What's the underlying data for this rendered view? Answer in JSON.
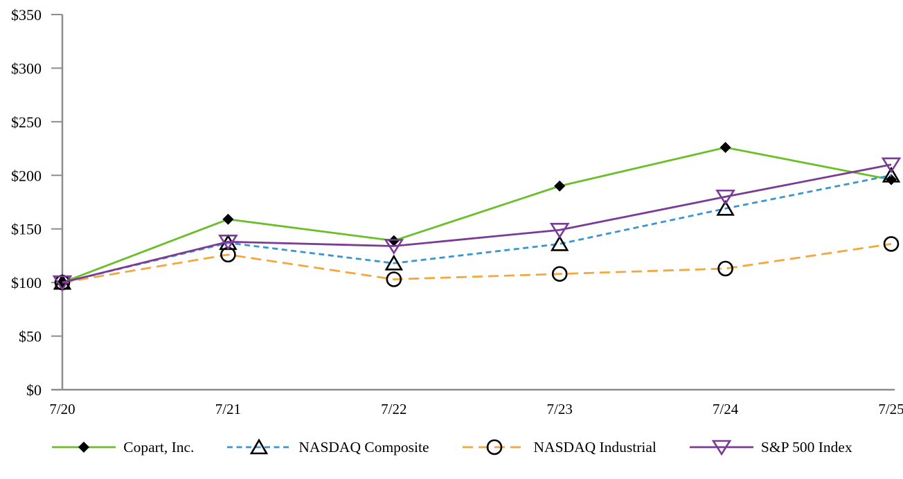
{
  "chart_data": {
    "type": "line",
    "title": "",
    "xlabel": "",
    "ylabel": "",
    "x_categories": [
      "7/20",
      "7/21",
      "7/22",
      "7/23",
      "7/24",
      "7/25"
    ],
    "ylim": [
      0,
      350
    ],
    "y_ticks": {
      "values": [
        0,
        50,
        100,
        150,
        200,
        250,
        300,
        350
      ],
      "labels": [
        "$0",
        "$50",
        "$100",
        "$150",
        "$200",
        "$250",
        "$300",
        "$350"
      ]
    },
    "grid": "off",
    "legend_position": "bottom",
    "axis_color": "#8c8c8c",
    "text_color": "#000000",
    "series": [
      {
        "name": "Copart, Inc.",
        "color": "#6abe28",
        "line_style": "solid",
        "dash": "",
        "marker": "diamond-filled",
        "marker_color": "#000000",
        "values": [
          100,
          159,
          139,
          190,
          226,
          196
        ]
      },
      {
        "name": "NASDAQ Composite",
        "color": "#3a96d2",
        "line_style": "dashed",
        "dash": "8 5.5",
        "marker": "triangle-up-open",
        "marker_color": "#000000",
        "values": [
          100,
          137,
          118,
          136,
          169,
          200
        ]
      },
      {
        "name": "NASDAQ Industrial",
        "color": "#f4a73c",
        "line_style": "dashed",
        "dash": "15 8",
        "marker": "circle-open",
        "marker_color": "#000000",
        "values": [
          100,
          126,
          103,
          108,
          113,
          136
        ]
      },
      {
        "name": "S&P 500 Index",
        "color": "#7a3b96",
        "line_style": "solid",
        "dash": "",
        "marker": "triangle-down-open",
        "marker_color": "#7a3b96",
        "values": [
          100,
          138,
          134,
          149,
          180,
          210
        ]
      }
    ]
  }
}
